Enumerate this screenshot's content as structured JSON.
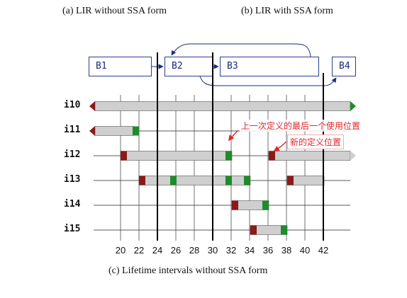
{
  "captions": {
    "a": "(a)  LIR without SSA form",
    "b": "(b)  LIR with SSA form",
    "c": "(c)  Lifetime intervals without SSA form"
  },
  "blocks": [
    "B1",
    "B2",
    "B3",
    "B4"
  ],
  "intervals": [
    "i10",
    "i11",
    "i12",
    "i13",
    "i14",
    "i15"
  ],
  "x_ticks": [
    "20",
    "22",
    "24",
    "26",
    "28",
    "30",
    "32",
    "34",
    "36",
    "38",
    "40",
    "42"
  ],
  "annotations": {
    "last_use": "上一次定义的最后一个使用位置",
    "new_def": "新的定义位置"
  },
  "colors": {
    "bar_fill": "#cfcfcf",
    "def_marker": "#8b1a1a",
    "use_marker": "#1e8c2a",
    "block_border": "#2b3f8f",
    "annotation": "#e0262b"
  }
}
